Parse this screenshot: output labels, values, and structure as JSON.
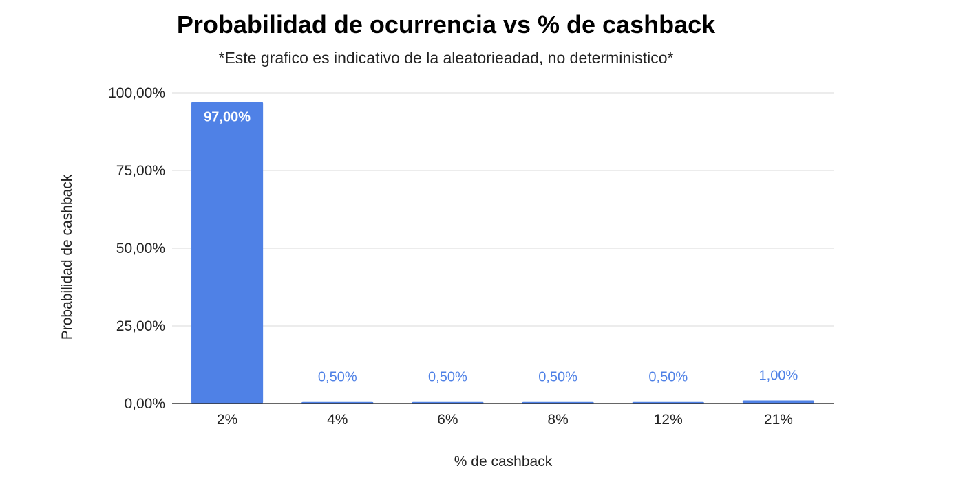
{
  "chart_data": {
    "type": "bar",
    "title": "Probabilidad de ocurrencia vs % de cashback",
    "subtitle": "*Este grafico es indicativo de la aleatorieadad, no deterministico*",
    "xlabel": "% de cashback",
    "ylabel": "Probabilidad de cashback",
    "categories": [
      "2%",
      "4%",
      "6%",
      "8%",
      "12%",
      "21%"
    ],
    "values": [
      97.0,
      0.5,
      0.5,
      0.5,
      0.5,
      1.0
    ],
    "value_labels": [
      "97,00%",
      "0,50%",
      "0,50%",
      "0,50%",
      "0,50%",
      "1,00%"
    ],
    "ylim": [
      0,
      100
    ],
    "yticks": [
      0,
      25,
      50,
      75,
      100
    ],
    "ytick_labels": [
      "0,00%",
      "25,00%",
      "50,00%",
      "75,00%",
      "100,00%"
    ],
    "grid": true,
    "legend": "none",
    "colors": {
      "bar": "#4f81e6",
      "label_outside": "#4f81e6",
      "label_inside": "#ffffff",
      "grid": "#d9d9d9",
      "axis": "#333333"
    }
  }
}
